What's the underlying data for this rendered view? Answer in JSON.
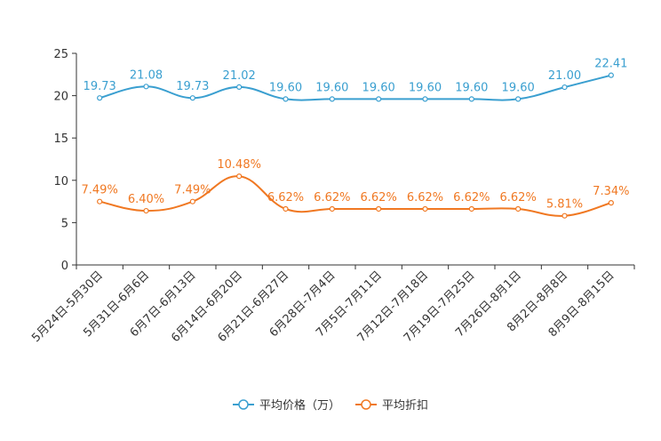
{
  "chart_data": {
    "type": "line",
    "categories": [
      "5月24日-5月30日",
      "5月31日-6月6日",
      "6月7日-6月13日",
      "6月14日-6月20日",
      "6月21日-6月27日",
      "6月28日-7月4日",
      "7月5日-7月11日",
      "7月12日-7月18日",
      "7月19日-7月25日",
      "7月26日-8月1日",
      "8月2日-8月8日",
      "8月9日-8月15日"
    ],
    "ylim": [
      0,
      25
    ],
    "yticks": [
      0,
      5,
      10,
      15,
      20,
      25
    ],
    "series": [
      {
        "name": "平均价格（万）",
        "color": "#3a9fd0",
        "values": [
          19.73,
          21.08,
          19.73,
          21.02,
          19.6,
          19.6,
          19.6,
          19.6,
          19.6,
          19.6,
          21.0,
          22.41
        ],
        "labels": [
          "19.73",
          "21.08",
          "19.73",
          "21.02",
          "19.60",
          "19.60",
          "19.60",
          "19.60",
          "19.60",
          "19.60",
          "21.00",
          "22.41"
        ]
      },
      {
        "name": "平均折扣",
        "color": "#f07822",
        "values": [
          7.49,
          6.4,
          7.49,
          10.48,
          6.62,
          6.62,
          6.62,
          6.62,
          6.62,
          6.62,
          5.81,
          7.34
        ],
        "labels": [
          "7.49%",
          "6.40%",
          "7.49%",
          "10.48%",
          "6.62%",
          "6.62%",
          "6.62%",
          "6.62%",
          "6.62%",
          "6.62%",
          "5.81%",
          "7.34%"
        ]
      }
    ],
    "legend": "bottom"
  }
}
